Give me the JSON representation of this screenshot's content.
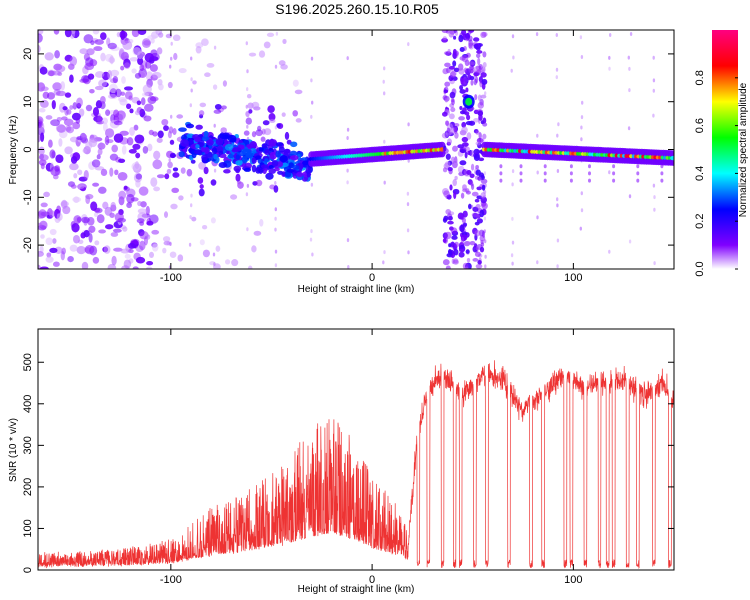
{
  "title": "S196.2025.260.15.10.R05",
  "chart_data": [
    {
      "type": "heatmap",
      "title": "S196.2025.260.15.10.R05",
      "xlabel": "Height of straight line (km)",
      "ylabel": "Frequency (Hz)",
      "xlim": [
        -166,
        150
      ],
      "ylim": [
        -25,
        25
      ],
      "xticks": [
        -100,
        0,
        100
      ],
      "yticks": [
        -20,
        -10,
        0,
        10,
        20
      ],
      "colorbar": {
        "label": "Normalized spectral amplitude",
        "range": [
          0,
          1
        ],
        "ticks": [
          0.0,
          0.2,
          0.4,
          0.6,
          0.8
        ],
        "tick_labels": [
          "0.0",
          "0.2",
          "0.4",
          "0.6",
          "0.8"
        ],
        "colormap": [
          "#ffffff",
          "#8000ff",
          "#0000ff",
          "#00ffff",
          "#00ff00",
          "#ffff00",
          "#ff0000",
          "#ff0080"
        ]
      },
      "features": [
        {
          "name": "noise region",
          "x_range": [
            -166,
            -40
          ],
          "y_range": [
            -25,
            25
          ],
          "amplitude": 0.1
        },
        {
          "name": "signal onset",
          "x_range": [
            -95,
            -30
          ],
          "frequency": [
            2,
            -4
          ],
          "amplitude": 0.3
        },
        {
          "name": "carrier track",
          "x_range": [
            -30,
            35
          ],
          "frequency": [
            -2,
            0
          ],
          "amplitude": 0.9
        },
        {
          "name": "interference burst",
          "x_range": [
            34,
            56
          ],
          "frequency": [
            -25,
            25
          ],
          "amplitude": 0.1
        },
        {
          "name": "spike",
          "x": 48,
          "frequency": 10,
          "amplitude": 0.5
        },
        {
          "name": "carrier track",
          "x_range": [
            56,
            150
          ],
          "frequency": [
            0,
            -2
          ],
          "amplitude": 0.9
        }
      ]
    },
    {
      "type": "line",
      "xlabel": "Height of straight line (km)",
      "ylabel": "SNR (10 * v/v)",
      "xlim": [
        -166,
        150
      ],
      "ylim": [
        0,
        580
      ],
      "xticks": [
        -100,
        0,
        100
      ],
      "yticks": [
        0,
        100,
        200,
        300,
        400,
        500
      ],
      "series": [
        {
          "name": "SNR",
          "color": "#ee3333",
          "x": [
            -166,
            -140,
            -120,
            -100,
            -90,
            -80,
            -70,
            -60,
            -50,
            -40,
            -30,
            -20,
            -10,
            0,
            10,
            18,
            22,
            28,
            35,
            45,
            55,
            65,
            75,
            85,
            95,
            105,
            115,
            125,
            135,
            145,
            150
          ],
          "y": [
            20,
            25,
            30,
            40,
            60,
            80,
            90,
            110,
            130,
            150,
            180,
            200,
            170,
            120,
            90,
            60,
            300,
            440,
            470,
            420,
            470,
            460,
            380,
            430,
            470,
            440,
            450,
            460,
            420,
            450,
            400
          ],
          "dropouts": [
            23,
            28,
            35,
            41,
            44,
            51,
            57,
            68,
            79,
            85,
            96,
            99,
            106,
            113,
            117,
            120,
            127,
            132,
            140,
            148
          ]
        }
      ]
    }
  ]
}
